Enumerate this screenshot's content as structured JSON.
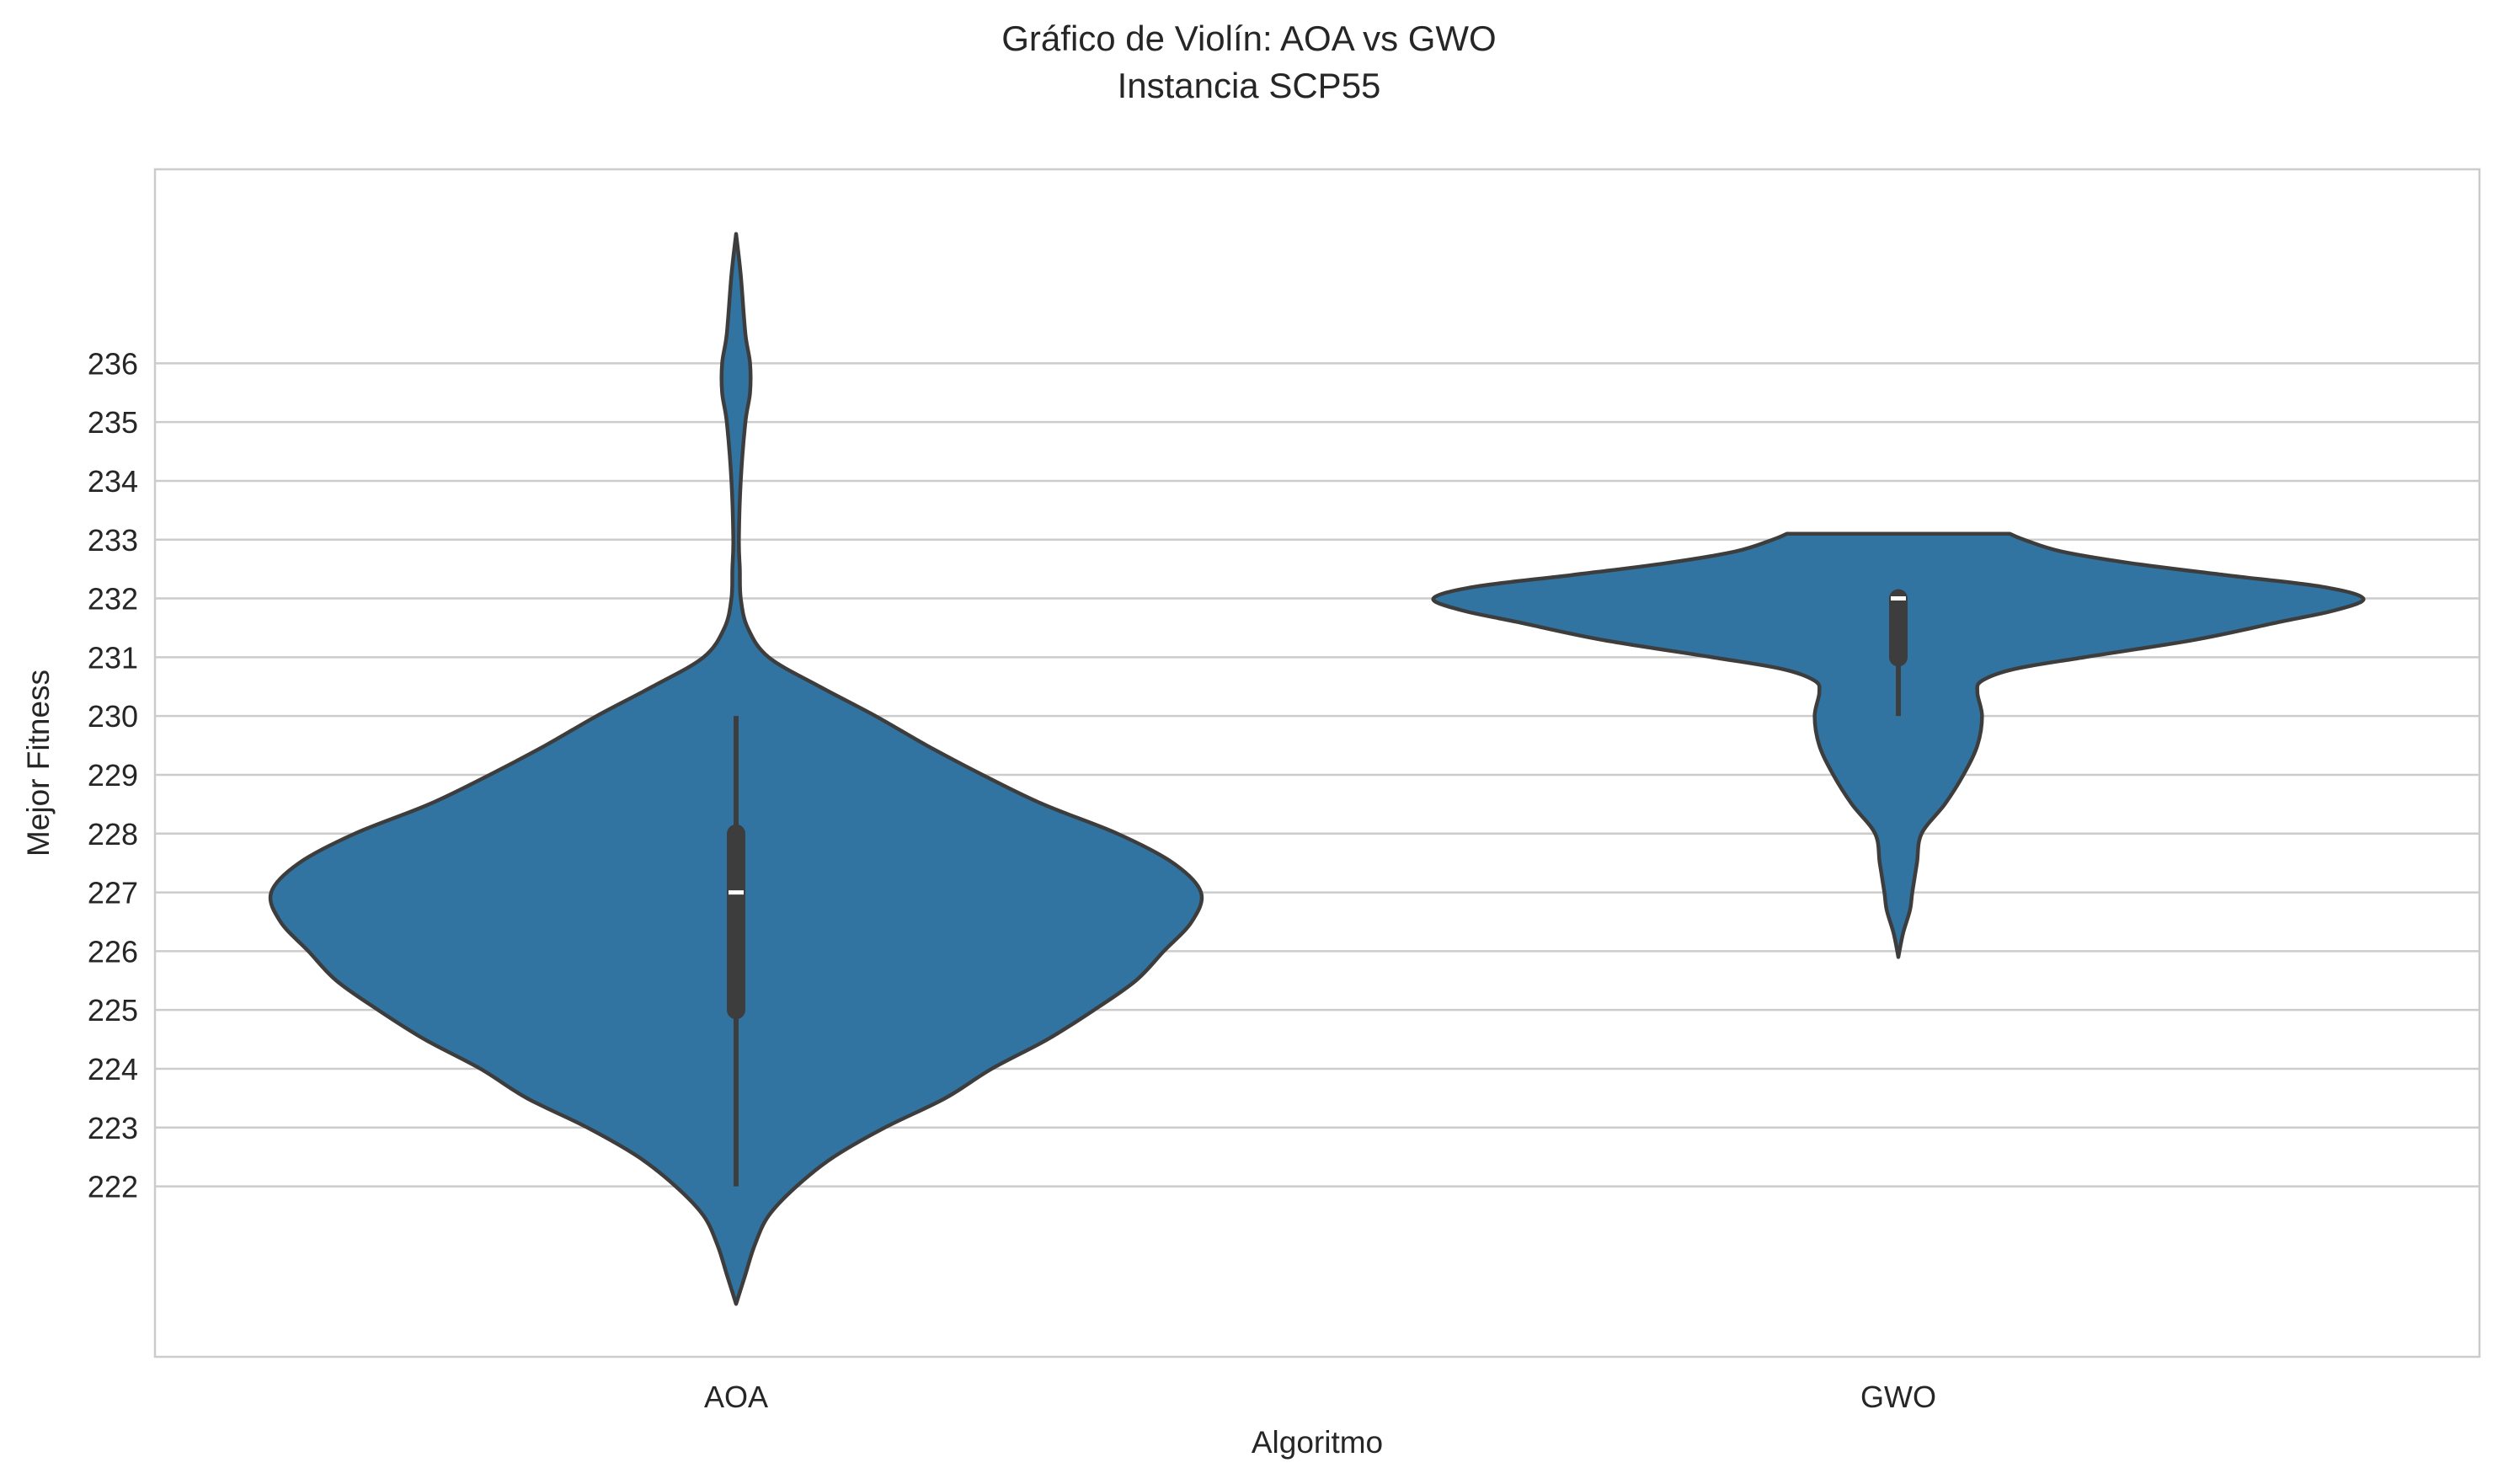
{
  "chart_data": {
    "type": "violin",
    "title": "Gráfico de Violín: AOA vs GWO",
    "subtitle": "Instancia SCP55",
    "xlabel": "Algoritmo",
    "ylabel": "Mejor Fitness",
    "categories": [
      "AOA",
      "GWO"
    ],
    "y_ticks": [
      222,
      223,
      224,
      225,
      226,
      227,
      228,
      229,
      230,
      231,
      232,
      233,
      234,
      235,
      236
    ],
    "ylim": [
      219.1,
      239.3
    ],
    "grid": "horizontal",
    "color": "#3274a1",
    "edge_color": "#3d3d3d",
    "series": [
      {
        "category": "AOA",
        "whisker": [
          222,
          230
        ],
        "q1": 225,
        "median": 227,
        "q3": 228,
        "density": [
          [
            220.0,
            0.0
          ],
          [
            220.5,
            0.02
          ],
          [
            221.0,
            0.04
          ],
          [
            221.5,
            0.07
          ],
          [
            222.0,
            0.13
          ],
          [
            222.5,
            0.21
          ],
          [
            223.0,
            0.32
          ],
          [
            223.5,
            0.45
          ],
          [
            224.0,
            0.55
          ],
          [
            224.5,
            0.67
          ],
          [
            225.0,
            0.77
          ],
          [
            225.5,
            0.86
          ],
          [
            226.0,
            0.92
          ],
          [
            226.5,
            0.98
          ],
          [
            227.0,
            1.0
          ],
          [
            227.5,
            0.94
          ],
          [
            228.0,
            0.82
          ],
          [
            228.5,
            0.66
          ],
          [
            229.0,
            0.53
          ],
          [
            229.5,
            0.41
          ],
          [
            230.0,
            0.3
          ],
          [
            230.5,
            0.18
          ],
          [
            231.0,
            0.07
          ],
          [
            231.5,
            0.025
          ],
          [
            232.0,
            0.01
          ],
          [
            232.5,
            0.008
          ],
          [
            233.0,
            0.006
          ],
          [
            234.0,
            0.01
          ],
          [
            235.0,
            0.02
          ],
          [
            235.5,
            0.03
          ],
          [
            236.0,
            0.03
          ],
          [
            236.5,
            0.02
          ],
          [
            237.5,
            0.01
          ],
          [
            238.2,
            0.0
          ]
        ]
      },
      {
        "category": "GWO",
        "whisker": [
          230,
          232
        ],
        "q1": 231,
        "median": 232,
        "q3": 232,
        "density": [
          [
            225.9,
            0.0
          ],
          [
            226.3,
            0.01
          ],
          [
            226.7,
            0.025
          ],
          [
            227.0,
            0.03
          ],
          [
            227.5,
            0.04
          ],
          [
            228.0,
            0.05
          ],
          [
            228.5,
            0.1
          ],
          [
            229.0,
            0.14
          ],
          [
            229.5,
            0.17
          ],
          [
            230.0,
            0.18
          ],
          [
            230.4,
            0.17
          ],
          [
            230.6,
            0.18
          ],
          [
            230.8,
            0.25
          ],
          [
            231.0,
            0.4
          ],
          [
            231.3,
            0.64
          ],
          [
            231.6,
            0.82
          ],
          [
            231.8,
            0.94
          ],
          [
            232.0,
            1.0
          ],
          [
            232.2,
            0.91
          ],
          [
            232.4,
            0.7
          ],
          [
            232.6,
            0.5
          ],
          [
            232.8,
            0.35
          ],
          [
            233.0,
            0.27
          ],
          [
            233.1,
            0.24
          ]
        ]
      }
    ]
  }
}
